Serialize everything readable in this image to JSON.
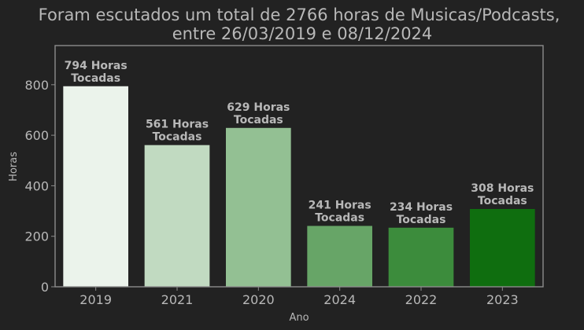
{
  "chart_data": {
    "type": "bar",
    "title": [
      "Foram escutados um total de 2766 horas de Musicas/Podcasts,",
      "entre 26/03/2019 e 08/12/2024"
    ],
    "xlabel": "Ano",
    "ylabel": "Horas",
    "categories": [
      "2019",
      "2021",
      "2020",
      "2024",
      "2022",
      "2023"
    ],
    "values": [
      794,
      561,
      629,
      241,
      234,
      308
    ],
    "data_labels": [
      [
        "794 Horas",
        "Tocadas"
      ],
      [
        "561 Horas",
        "Tocadas"
      ],
      [
        "629 Horas",
        "Tocadas"
      ],
      [
        "241 Horas",
        "Tocadas"
      ],
      [
        "234 Horas",
        "Tocadas"
      ],
      [
        "308 Horas",
        "Tocadas"
      ]
    ],
    "bar_colors": [
      "#ebf3eb",
      "#c1dac1",
      "#93c093",
      "#67a567",
      "#3c8c3c",
      "#0f6e0f"
    ],
    "yticks": [
      0,
      200,
      400,
      600,
      800
    ],
    "ylim": [
      0,
      955
    ],
    "grid": false,
    "legend": "none"
  },
  "colors": {
    "background": "#222222",
    "frame": "#8c8c8c",
    "text": "#b8b8b8"
  }
}
